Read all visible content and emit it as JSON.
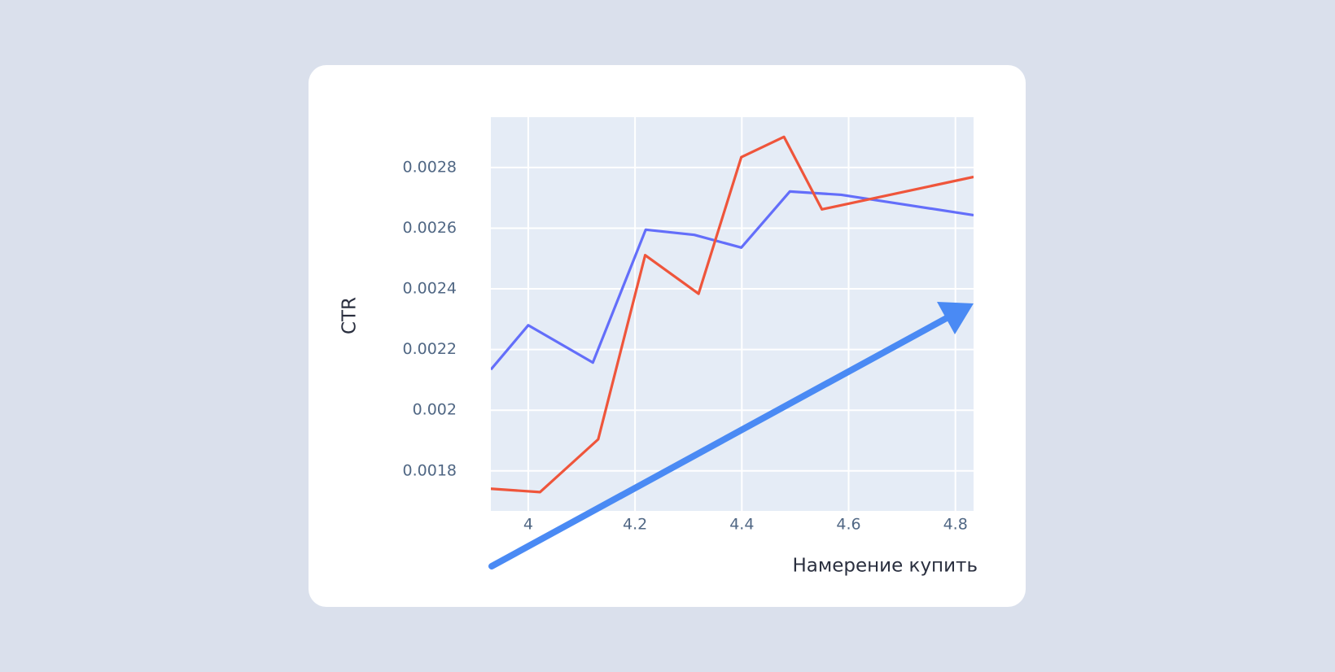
{
  "chart_data": {
    "type": "line",
    "x_label": "Намерение купить",
    "y_label": "CTR",
    "xlim": [
      3.93,
      4.834
    ],
    "xticks": [
      4,
      4.2,
      4.4,
      4.6,
      4.8
    ],
    "ylim": [
      0.001668,
      0.002966
    ],
    "yticks": [
      0.0018,
      0.002,
      0.0022,
      0.0024,
      0.0026,
      0.0028
    ],
    "grid": true,
    "series": [
      {
        "color": "#636efa",
        "x": [
          3.93,
          4.0,
          4.121,
          4.22,
          4.311,
          4.399,
          4.49,
          4.586,
          4.834
        ],
        "values": [
          0.002134,
          0.00228,
          0.002157,
          0.002595,
          0.002578,
          0.002536,
          0.002721,
          0.00271,
          0.002643
        ]
      },
      {
        "color": "#ef553b",
        "x": [
          3.93,
          4.022,
          4.131,
          4.219,
          4.319,
          4.399,
          4.479,
          4.55,
          4.834
        ],
        "values": [
          0.001741,
          0.00173,
          0.001904,
          0.002511,
          0.002384,
          0.002834,
          0.002901,
          0.002662,
          0.002769
        ]
      }
    ]
  }
}
